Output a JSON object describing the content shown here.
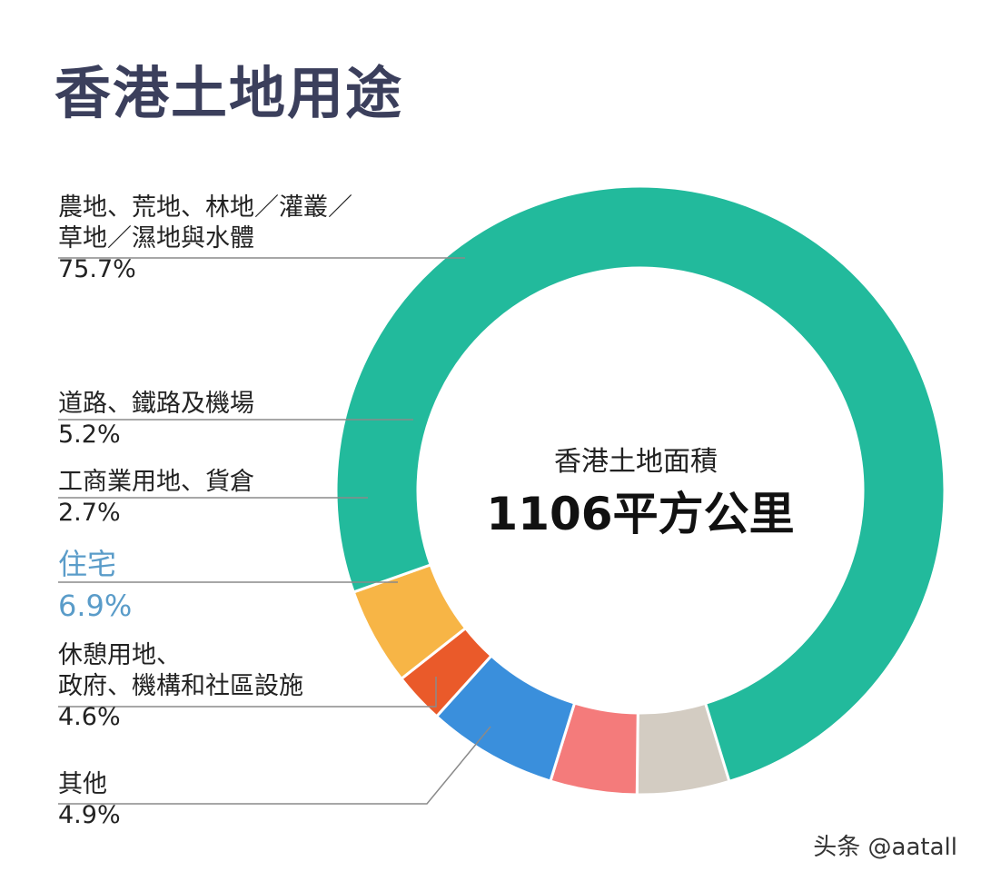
{
  "title": "香港土地用途",
  "center": {
    "label": "香港土地面積",
    "value": "1106平方公里"
  },
  "watermark": "头条 @aatall",
  "chart_data": {
    "type": "pie",
    "donut": true,
    "title": "香港土地用途",
    "unit": "%",
    "slices": [
      {
        "lines": [
          "其他"
        ],
        "value": 4.9,
        "label": "4.9%",
        "color": "#d3ccc2",
        "highlight": false
      },
      {
        "lines": [
          "休憩用地、",
          "政府、機構和社區設施"
        ],
        "value": 4.6,
        "label": "4.6%",
        "color": "#f47b7b",
        "highlight": false
      },
      {
        "lines": [
          "住宅"
        ],
        "value": 6.9,
        "label": "6.9%",
        "color": "#3a8fdc",
        "highlight": true
      },
      {
        "lines": [
          "工商業用地、貨倉"
        ],
        "value": 2.7,
        "label": "2.7%",
        "color": "#ea5a2a",
        "highlight": false
      },
      {
        "lines": [
          "道路、鐵路及機場"
        ],
        "value": 5.2,
        "label": "5.2%",
        "color": "#f7b546",
        "highlight": false
      },
      {
        "lines": [
          "農地、荒地、林地／灌叢／",
          "草地／濕地與水體"
        ],
        "value": 75.7,
        "label": "75.7%",
        "color": "#22ba9c",
        "highlight": false
      }
    ]
  }
}
